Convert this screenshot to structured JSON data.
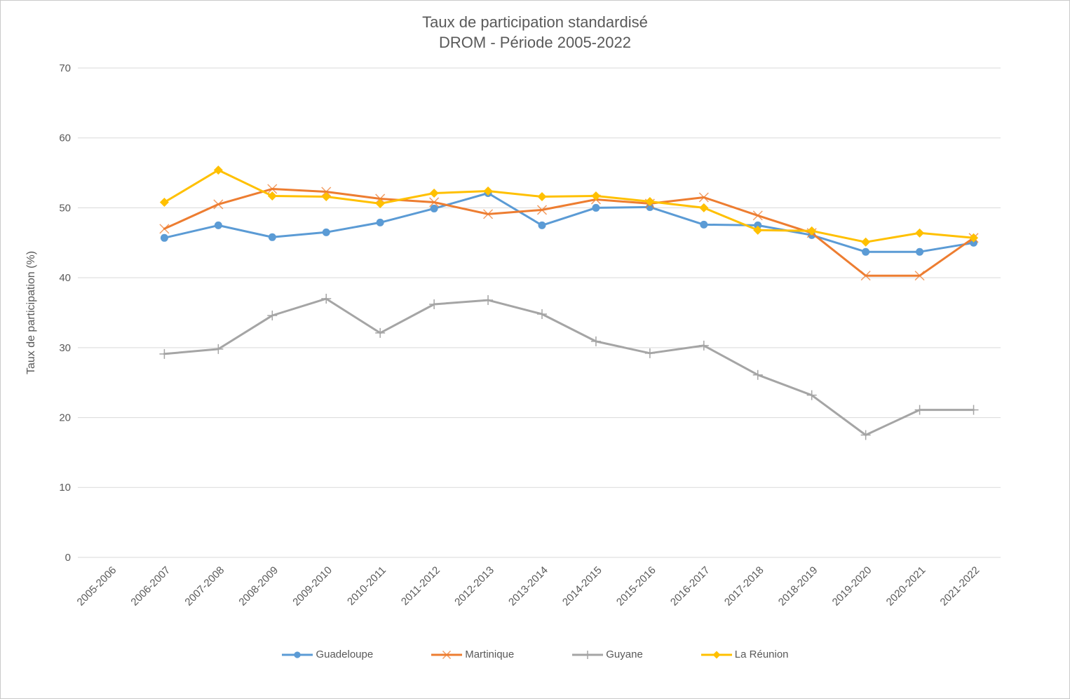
{
  "title": {
    "line1": "Taux de participation standardisé",
    "line2": "DROM - Période 2005-2022"
  },
  "chart_data": {
    "type": "line",
    "title": "Taux de participation standardisé DROM - Période 2005-2022",
    "xlabel": "",
    "ylabel": "Taux de participation (%)",
    "ylim": [
      0,
      70
    ],
    "ytick_step": 10,
    "yticks": [
      0,
      10,
      20,
      30,
      40,
      50,
      60,
      70
    ],
    "grid": true,
    "legend_position": "bottom",
    "categories": [
      "2005-2006",
      "2006-2007",
      "2007-2008",
      "2008-2009",
      "2009-2010",
      "2010-2011",
      "2011-2012",
      "2012-2013",
      "2013-2014",
      "2014-2015",
      "2015-2016",
      "2016-2017",
      "2017-2018",
      "2018-2019",
      "2019-2020",
      "2020-2021",
      "2021-2022"
    ],
    "series": [
      {
        "name": "Guadeloupe",
        "color": "#5B9BD5",
        "marker": "circle",
        "values": [
          null,
          45.7,
          47.5,
          45.8,
          46.5,
          47.9,
          49.9,
          52.1,
          47.5,
          50.0,
          50.1,
          47.6,
          47.5,
          46.1,
          43.7,
          43.7,
          45.0
        ]
      },
      {
        "name": "Martinique",
        "color": "#ED7D31",
        "marker": "x",
        "values": [
          null,
          47.0,
          50.5,
          52.7,
          52.3,
          51.3,
          50.8,
          49.1,
          49.7,
          51.2,
          50.6,
          51.5,
          48.9,
          46.4,
          40.3,
          40.3,
          45.7
        ]
      },
      {
        "name": "Guyane",
        "color": "#A5A5A5",
        "marker": "plus",
        "values": [
          null,
          29.1,
          29.8,
          34.6,
          37.0,
          32.1,
          36.2,
          36.8,
          34.8,
          30.9,
          29.2,
          30.3,
          26.1,
          23.2,
          17.5,
          21.1,
          21.1
        ]
      },
      {
        "name": "La Réunion",
        "color": "#FFC000",
        "marker": "diamond",
        "values": [
          null,
          50.8,
          55.4,
          51.7,
          51.6,
          50.6,
          52.1,
          52.4,
          51.6,
          51.7,
          50.9,
          50.0,
          46.8,
          46.7,
          45.1,
          46.4,
          45.7
        ]
      }
    ],
    "colors": {
      "grid": "#D9D9D9",
      "text": "#595959"
    }
  }
}
